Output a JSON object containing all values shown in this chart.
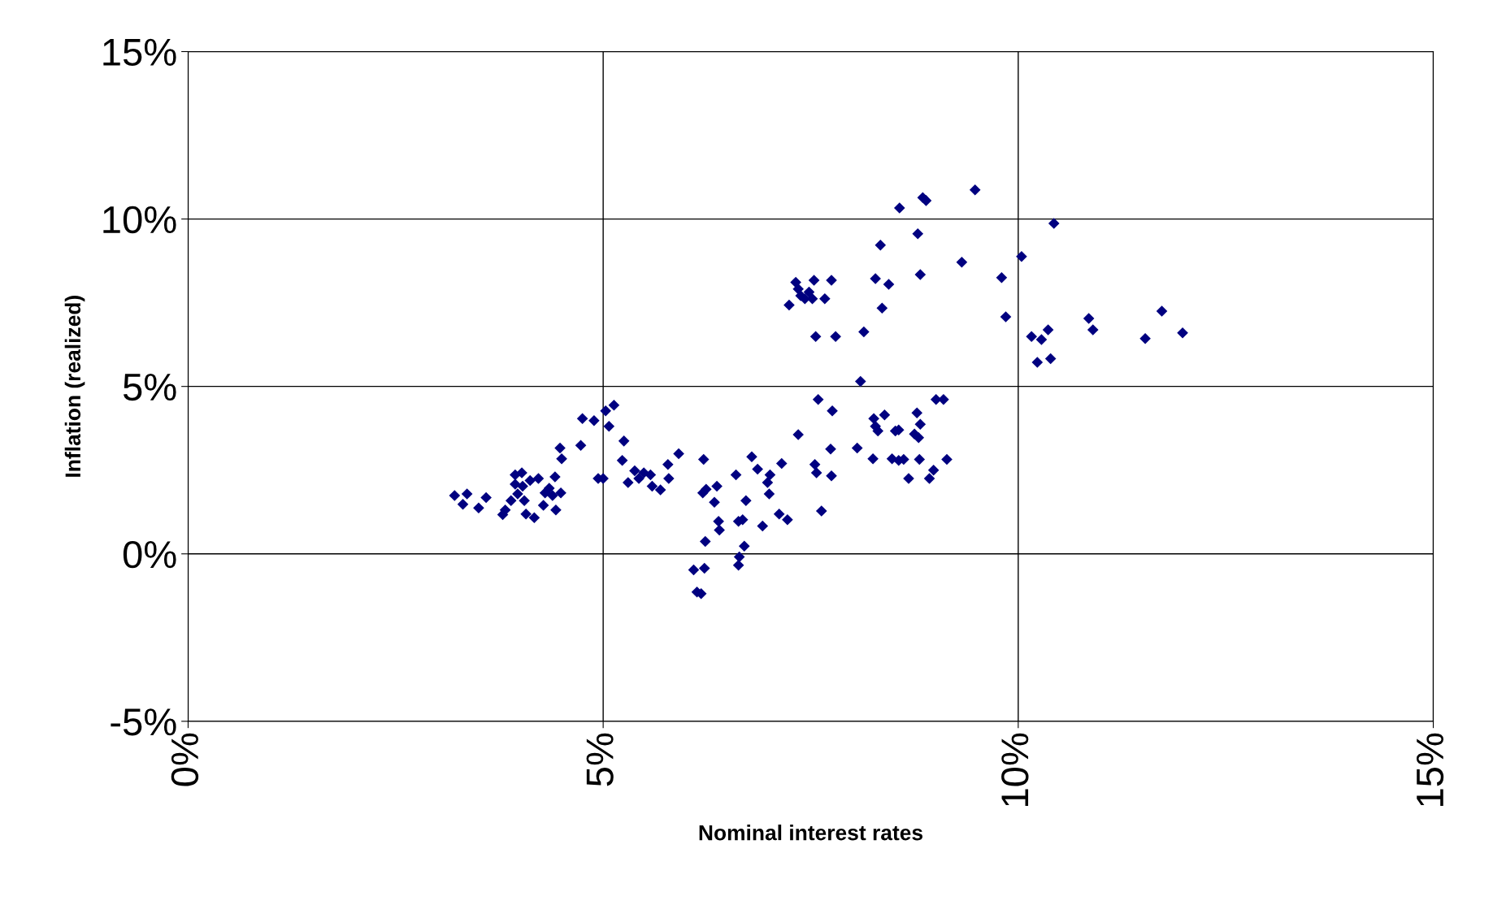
{
  "chart_data": {
    "type": "scatter",
    "xlabel": "Nominal interest rates",
    "ylabel": "Inflation (realized)",
    "marker": "diamond",
    "grid": true,
    "legend": false,
    "xlim": [
      0,
      15
    ],
    "xticks": [
      {
        "value": 0,
        "label": "0%"
      },
      {
        "value": 5,
        "label": "5%"
      },
      {
        "value": 10,
        "label": "10%"
      },
      {
        "value": 15,
        "label": "15%"
      }
    ],
    "ylim": [
      -5,
      15
    ],
    "yticks": [
      {
        "value": -5,
        "label": "-5%"
      },
      {
        "value": 0,
        "label": "0%"
      },
      {
        "value": 5,
        "label": "5%"
      },
      {
        "value": 10,
        "label": "10%"
      },
      {
        "value": 15,
        "label": "15%"
      }
    ],
    "series": [
      {
        "color": "#000080",
        "x": [
          3.21,
          3.31,
          3.36,
          3.5,
          3.59,
          3.79,
          3.82,
          3.89,
          3.94,
          3.94,
          3.97,
          4.02,
          4.03,
          4.05,
          4.07,
          4.12,
          4.17,
          4.22,
          4.28,
          4.3,
          4.35,
          4.39,
          4.42,
          4.43,
          4.49,
          4.48,
          4.5,
          4.73,
          4.75,
          4.89,
          4.94,
          5.0,
          5.03,
          5.07,
          5.13,
          5.25,
          5.23,
          5.3,
          5.38,
          5.43,
          5.49,
          5.57,
          5.59,
          5.69,
          5.78,
          5.79,
          5.91,
          6.09,
          6.13,
          6.18,
          6.2,
          6.21,
          6.22,
          6.23,
          6.24,
          6.34,
          6.37,
          6.39,
          6.4,
          6.6,
          6.63,
          6.63,
          6.64,
          6.68,
          6.7,
          6.72,
          6.79,
          6.86,
          6.92,
          6.98,
          7.01,
          7.0,
          7.12,
          7.15,
          7.22,
          7.24,
          7.32,
          7.35,
          7.35,
          7.38,
          7.43,
          7.48,
          7.52,
          7.54,
          7.55,
          7.56,
          7.57,
          7.59,
          7.63,
          7.67,
          7.74,
          7.75,
          7.75,
          7.76,
          7.8,
          8.06,
          8.1,
          8.14,
          8.25,
          8.26,
          8.28,
          8.28,
          8.31,
          8.34,
          8.36,
          8.39,
          8.44,
          8.48,
          8.52,
          8.56,
          8.57,
          8.56,
          8.62,
          8.68,
          8.75,
          8.78,
          8.79,
          8.8,
          8.81,
          8.82,
          8.82,
          8.85,
          8.89,
          8.93,
          8.98,
          9.01,
          9.1,
          9.14,
          9.32,
          9.48,
          9.8,
          9.85,
          10.04,
          10.16,
          10.23,
          10.28,
          10.36,
          10.39,
          10.43,
          10.85,
          10.9,
          11.53,
          11.73,
          11.98
        ],
        "values": [
          1.74,
          1.48,
          1.79,
          1.37,
          1.68,
          1.17,
          1.31,
          1.59,
          2.36,
          2.08,
          1.79,
          2.42,
          2.02,
          1.59,
          1.19,
          2.19,
          1.08,
          2.25,
          1.45,
          1.82,
          1.96,
          1.74,
          2.3,
          1.31,
          1.82,
          3.16,
          2.84,
          3.24,
          4.04,
          3.98,
          2.25,
          2.25,
          4.27,
          3.81,
          4.44,
          3.37,
          2.79,
          2.13,
          2.48,
          2.25,
          2.42,
          2.36,
          2.02,
          1.91,
          2.67,
          2.25,
          2.99,
          -0.48,
          -1.14,
          -1.19,
          1.82,
          2.82,
          -0.43,
          0.37,
          1.93,
          1.54,
          2.02,
          0.97,
          0.71,
          2.36,
          0.97,
          -0.34,
          -0.09,
          1.02,
          0.23,
          1.59,
          2.9,
          2.53,
          0.83,
          2.13,
          2.36,
          1.79,
          1.19,
          2.7,
          1.02,
          7.43,
          8.11,
          3.56,
          7.91,
          7.71,
          7.62,
          7.82,
          7.62,
          8.17,
          2.67,
          6.49,
          2.42,
          4.61,
          1.28,
          7.62,
          3.13,
          8.17,
          2.33,
          4.27,
          6.49,
          3.16,
          5.15,
          6.63,
          2.84,
          4.04,
          8.22,
          3.81,
          3.67,
          9.22,
          7.34,
          4.15,
          8.05,
          2.84,
          3.67,
          3.7,
          10.33,
          2.79,
          2.82,
          2.25,
          3.58,
          4.21,
          9.56,
          3.47,
          2.82,
          8.34,
          3.87,
          10.64,
          10.55,
          2.25,
          2.5,
          4.61,
          4.61,
          2.82,
          8.71,
          10.87,
          8.25,
          7.08,
          8.88,
          6.49,
          5.72,
          6.4,
          6.69,
          5.83,
          9.87,
          7.03,
          6.69,
          6.43,
          7.25,
          6.6
        ]
      }
    ]
  }
}
